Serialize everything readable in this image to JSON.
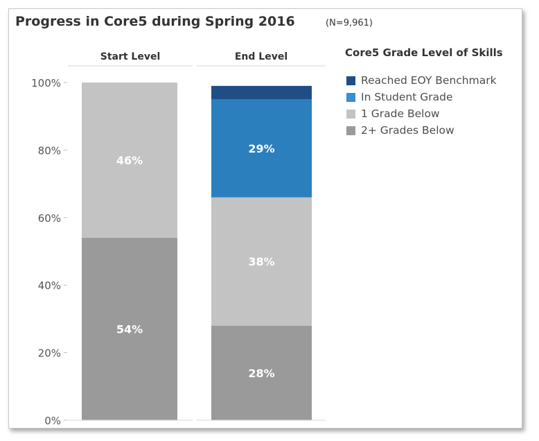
{
  "title": "Progress in Core5 during Spring 2016",
  "note": "(N=9,961)",
  "chart_data": {
    "type": "bar",
    "stacked": true,
    "normalized": true,
    "title": "Progress in Core5 during Spring 2016",
    "categories": [
      "Start Level",
      "End Level"
    ],
    "series": [
      {
        "name": "2+ Grades Below",
        "color": "#9a9a9a",
        "values": [
          54,
          28
        ],
        "labels": [
          "54%",
          "28%"
        ]
      },
      {
        "name": "1 Grade Below",
        "color": "#c3c3c3",
        "values": [
          46,
          38
        ],
        "labels": [
          "46%",
          "38%"
        ]
      },
      {
        "name": "In Student Grade",
        "color": "#2b7fbd",
        "values": [
          0,
          29
        ],
        "labels": [
          "",
          "29%"
        ]
      },
      {
        "name": "Reached EOY Benchmark",
        "color": "#1f4e85",
        "values": [
          0,
          4
        ],
        "labels": [
          "",
          ""
        ]
      }
    ],
    "ylim": [
      0,
      100
    ],
    "yticks": [
      0,
      20,
      40,
      60,
      80,
      100
    ],
    "ytick_labels": [
      "0%",
      "20%",
      "40%",
      "60%",
      "80%",
      "100%"
    ],
    "legend": {
      "title": "Core5 Grade Level of Skills",
      "placement": "right",
      "items": [
        "Reached EOY Benchmark",
        "In Student Grade",
        "1 Grade Below",
        "2+ Grades Below"
      ]
    },
    "grid": false
  }
}
